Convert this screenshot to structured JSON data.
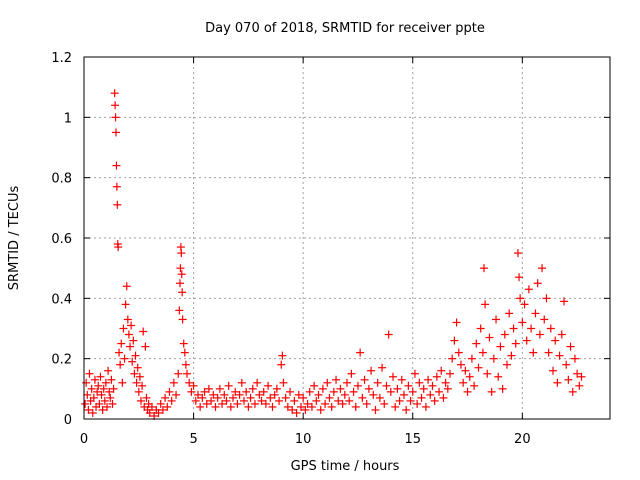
{
  "chart_data": {
    "type": "scatter",
    "title": "Day 070 of 2018, SRMTID for receiver ppte",
    "xlabel": "GPS time / hours",
    "ylabel": "SRMTID / TECUs",
    "xlim": [
      0,
      24
    ],
    "ylim": [
      0,
      1.2
    ],
    "xticks": [
      0,
      5,
      10,
      15,
      20
    ],
    "xtick_labels": [
      "0",
      "5",
      "10",
      "15",
      "20"
    ],
    "yticks": [
      0,
      0.2,
      0.4,
      0.6,
      0.8,
      1.0,
      1.2
    ],
    "ytick_labels": [
      "0",
      "0.2",
      "0.4",
      "0.6",
      "0.8",
      "1",
      "1.2"
    ],
    "grid": true,
    "marker": "+",
    "color": "#ff0000",
    "series": [
      {
        "name": "SRMTID",
        "points": [
          [
            0.05,
            0.05
          ],
          [
            0.1,
            0.12
          ],
          [
            0.15,
            0.08
          ],
          [
            0.2,
            0.03
          ],
          [
            0.25,
            0.15
          ],
          [
            0.3,
            0.06
          ],
          [
            0.35,
            0.1
          ],
          [
            0.4,
            0.02
          ],
          [
            0.45,
            0.07
          ],
          [
            0.5,
            0.13
          ],
          [
            0.55,
            0.04
          ],
          [
            0.6,
            0.09
          ],
          [
            0.65,
            0.11
          ],
          [
            0.7,
            0.05
          ],
          [
            0.75,
            0.14
          ],
          [
            0.8,
            0.08
          ],
          [
            0.85,
            0.03
          ],
          [
            0.9,
            0.1
          ],
          [
            0.95,
            0.06
          ],
          [
            1.0,
            0.12
          ],
          [
            1.05,
            0.04
          ],
          [
            1.1,
            0.16
          ],
          [
            1.15,
            0.09
          ],
          [
            1.2,
            0.07
          ],
          [
            1.25,
            0.13
          ],
          [
            1.3,
            0.05
          ],
          [
            1.35,
            0.1
          ],
          [
            1.4,
            1.08
          ],
          [
            1.42,
            1.04
          ],
          [
            1.44,
            1.0
          ],
          [
            1.46,
            0.95
          ],
          [
            1.48,
            0.84
          ],
          [
            1.5,
            0.77
          ],
          [
            1.52,
            0.71
          ],
          [
            1.54,
            0.58
          ],
          [
            1.56,
            0.57
          ],
          [
            1.6,
            0.22
          ],
          [
            1.65,
            0.18
          ],
          [
            1.7,
            0.25
          ],
          [
            1.75,
            0.12
          ],
          [
            1.8,
            0.3
          ],
          [
            1.85,
            0.2
          ],
          [
            1.9,
            0.38
          ],
          [
            1.95,
            0.44
          ],
          [
            2.0,
            0.33
          ],
          [
            2.05,
            0.28
          ],
          [
            2.1,
            0.24
          ],
          [
            2.15,
            0.31
          ],
          [
            2.2,
            0.19
          ],
          [
            2.25,
            0.26
          ],
          [
            2.3,
            0.15
          ],
          [
            2.35,
            0.21
          ],
          [
            2.4,
            0.12
          ],
          [
            2.45,
            0.17
          ],
          [
            2.5,
            0.09
          ],
          [
            2.55,
            0.14
          ],
          [
            2.6,
            0.06
          ],
          [
            2.65,
            0.11
          ],
          [
            2.7,
            0.29
          ],
          [
            2.75,
            0.04
          ],
          [
            2.8,
            0.24
          ],
          [
            2.85,
            0.07
          ],
          [
            2.9,
            0.03
          ],
          [
            2.95,
            0.05
          ],
          [
            3.0,
            0.02
          ],
          [
            3.1,
            0.04
          ],
          [
            3.2,
            0.01
          ],
          [
            3.3,
            0.03
          ],
          [
            3.4,
            0.02
          ],
          [
            3.5,
            0.05
          ],
          [
            3.6,
            0.03
          ],
          [
            3.7,
            0.07
          ],
          [
            3.8,
            0.04
          ],
          [
            3.9,
            0.09
          ],
          [
            4.0,
            0.06
          ],
          [
            4.1,
            0.12
          ],
          [
            4.2,
            0.08
          ],
          [
            4.3,
            0.15
          ],
          [
            4.35,
            0.36
          ],
          [
            4.38,
            0.45
          ],
          [
            4.4,
            0.5
          ],
          [
            4.42,
            0.57
          ],
          [
            4.44,
            0.55
          ],
          [
            4.46,
            0.48
          ],
          [
            4.48,
            0.42
          ],
          [
            4.5,
            0.33
          ],
          [
            4.55,
            0.25
          ],
          [
            4.6,
            0.22
          ],
          [
            4.65,
            0.18
          ],
          [
            4.7,
            0.15
          ],
          [
            4.8,
            0.12
          ],
          [
            4.9,
            0.09
          ],
          [
            5.0,
            0.11
          ],
          [
            5.1,
            0.06
          ],
          [
            5.2,
            0.08
          ],
          [
            5.3,
            0.04
          ],
          [
            5.4,
            0.07
          ],
          [
            5.5,
            0.09
          ],
          [
            5.6,
            0.05
          ],
          [
            5.7,
            0.1
          ],
          [
            5.8,
            0.06
          ],
          [
            5.9,
            0.08
          ],
          [
            6.0,
            0.04
          ],
          [
            6.1,
            0.07
          ],
          [
            6.2,
            0.1
          ],
          [
            6.3,
            0.05
          ],
          [
            6.4,
            0.08
          ],
          [
            6.5,
            0.06
          ],
          [
            6.6,
            0.11
          ],
          [
            6.7,
            0.04
          ],
          [
            6.8,
            0.07
          ],
          [
            6.9,
            0.09
          ],
          [
            7.0,
            0.05
          ],
          [
            7.1,
            0.08
          ],
          [
            7.2,
            0.12
          ],
          [
            7.3,
            0.06
          ],
          [
            7.4,
            0.09
          ],
          [
            7.5,
            0.04
          ],
          [
            7.6,
            0.07
          ],
          [
            7.7,
            0.1
          ],
          [
            7.8,
            0.05
          ],
          [
            7.9,
            0.12
          ],
          [
            8.0,
            0.08
          ],
          [
            8.1,
            0.06
          ],
          [
            8.2,
            0.09
          ],
          [
            8.3,
            0.05
          ],
          [
            8.4,
            0.11
          ],
          [
            8.5,
            0.07
          ],
          [
            8.6,
            0.04
          ],
          [
            8.7,
            0.08
          ],
          [
            8.8,
            0.1
          ],
          [
            8.9,
            0.06
          ],
          [
            9.0,
            0.18
          ],
          [
            9.05,
            0.21
          ],
          [
            9.1,
            0.12
          ],
          [
            9.2,
            0.07
          ],
          [
            9.3,
            0.04
          ],
          [
            9.4,
            0.09
          ],
          [
            9.5,
            0.03
          ],
          [
            9.6,
            0.06
          ],
          [
            9.7,
            0.02
          ],
          [
            9.8,
            0.08
          ],
          [
            9.9,
            0.04
          ],
          [
            10.0,
            0.07
          ],
          [
            10.1,
            0.03
          ],
          [
            10.2,
            0.05
          ],
          [
            10.3,
            0.09
          ],
          [
            10.4,
            0.04
          ],
          [
            10.5,
            0.11
          ],
          [
            10.6,
            0.06
          ],
          [
            10.7,
            0.08
          ],
          [
            10.8,
            0.03
          ],
          [
            10.9,
            0.1
          ],
          [
            11.0,
            0.05
          ],
          [
            11.1,
            0.12
          ],
          [
            11.2,
            0.07
          ],
          [
            11.3,
            0.04
          ],
          [
            11.4,
            0.09
          ],
          [
            11.5,
            0.13
          ],
          [
            11.6,
            0.06
          ],
          [
            11.7,
            0.1
          ],
          [
            11.8,
            0.05
          ],
          [
            11.9,
            0.08
          ],
          [
            12.0,
            0.12
          ],
          [
            12.1,
            0.06
          ],
          [
            12.2,
            0.15
          ],
          [
            12.3,
            0.09
          ],
          [
            12.4,
            0.04
          ],
          [
            12.5,
            0.11
          ],
          [
            12.6,
            0.22
          ],
          [
            12.7,
            0.07
          ],
          [
            12.8,
            0.13
          ],
          [
            12.9,
            0.05
          ],
          [
            13.0,
            0.1
          ],
          [
            13.1,
            0.16
          ],
          [
            13.2,
            0.08
          ],
          [
            13.3,
            0.03
          ],
          [
            13.4,
            0.12
          ],
          [
            13.5,
            0.07
          ],
          [
            13.6,
            0.17
          ],
          [
            13.7,
            0.05
          ],
          [
            13.8,
            0.11
          ],
          [
            13.9,
            0.28
          ],
          [
            14.0,
            0.09
          ],
          [
            14.1,
            0.14
          ],
          [
            14.2,
            0.04
          ],
          [
            14.3,
            0.1
          ],
          [
            14.4,
            0.06
          ],
          [
            14.5,
            0.13
          ],
          [
            14.6,
            0.08
          ],
          [
            14.7,
            0.03
          ],
          [
            14.8,
            0.11
          ],
          [
            14.9,
            0.06
          ],
          [
            15.0,
            0.09
          ],
          [
            15.1,
            0.15
          ],
          [
            15.2,
            0.05
          ],
          [
            15.3,
            0.12
          ],
          [
            15.4,
            0.07
          ],
          [
            15.5,
            0.1
          ],
          [
            15.6,
            0.04
          ],
          [
            15.7,
            0.13
          ],
          [
            15.8,
            0.08
          ],
          [
            15.9,
            0.11
          ],
          [
            16.0,
            0.06
          ],
          [
            16.1,
            0.14
          ],
          [
            16.2,
            0.09
          ],
          [
            16.3,
            0.16
          ],
          [
            16.4,
            0.07
          ],
          [
            16.5,
            0.12
          ],
          [
            16.6,
            0.1
          ],
          [
            16.7,
            0.15
          ],
          [
            16.8,
            0.2
          ],
          [
            16.9,
            0.26
          ],
          [
            17.0,
            0.32
          ],
          [
            17.1,
            0.22
          ],
          [
            17.2,
            0.18
          ],
          [
            17.3,
            0.12
          ],
          [
            17.4,
            0.16
          ],
          [
            17.5,
            0.09
          ],
          [
            17.6,
            0.14
          ],
          [
            17.7,
            0.2
          ],
          [
            17.8,
            0.11
          ],
          [
            17.9,
            0.25
          ],
          [
            18.0,
            0.17
          ],
          [
            18.1,
            0.3
          ],
          [
            18.2,
            0.22
          ],
          [
            18.25,
            0.5
          ],
          [
            18.3,
            0.38
          ],
          [
            18.4,
            0.15
          ],
          [
            18.5,
            0.27
          ],
          [
            18.6,
            0.09
          ],
          [
            18.7,
            0.2
          ],
          [
            18.8,
            0.33
          ],
          [
            18.9,
            0.14
          ],
          [
            19.0,
            0.24
          ],
          [
            19.1,
            0.1
          ],
          [
            19.2,
            0.28
          ],
          [
            19.3,
            0.18
          ],
          [
            19.4,
            0.35
          ],
          [
            19.5,
            0.21
          ],
          [
            19.6,
            0.3
          ],
          [
            19.7,
            0.25
          ],
          [
            19.8,
            0.55
          ],
          [
            19.85,
            0.47
          ],
          [
            19.9,
            0.4
          ],
          [
            20.0,
            0.32
          ],
          [
            20.1,
            0.38
          ],
          [
            20.2,
            0.26
          ],
          [
            20.3,
            0.43
          ],
          [
            20.4,
            0.3
          ],
          [
            20.5,
            0.22
          ],
          [
            20.6,
            0.35
          ],
          [
            20.7,
            0.45
          ],
          [
            20.8,
            0.28
          ],
          [
            20.9,
            0.5
          ],
          [
            21.0,
            0.33
          ],
          [
            21.1,
            0.4
          ],
          [
            21.2,
            0.22
          ],
          [
            21.3,
            0.3
          ],
          [
            21.4,
            0.16
          ],
          [
            21.5,
            0.26
          ],
          [
            21.6,
            0.12
          ],
          [
            21.7,
            0.21
          ],
          [
            21.8,
            0.28
          ],
          [
            21.9,
            0.39
          ],
          [
            22.0,
            0.18
          ],
          [
            22.1,
            0.13
          ],
          [
            22.2,
            0.24
          ],
          [
            22.3,
            0.09
          ],
          [
            22.4,
            0.2
          ],
          [
            22.5,
            0.15
          ],
          [
            22.6,
            0.11
          ],
          [
            22.7,
            0.14
          ]
        ]
      }
    ]
  }
}
